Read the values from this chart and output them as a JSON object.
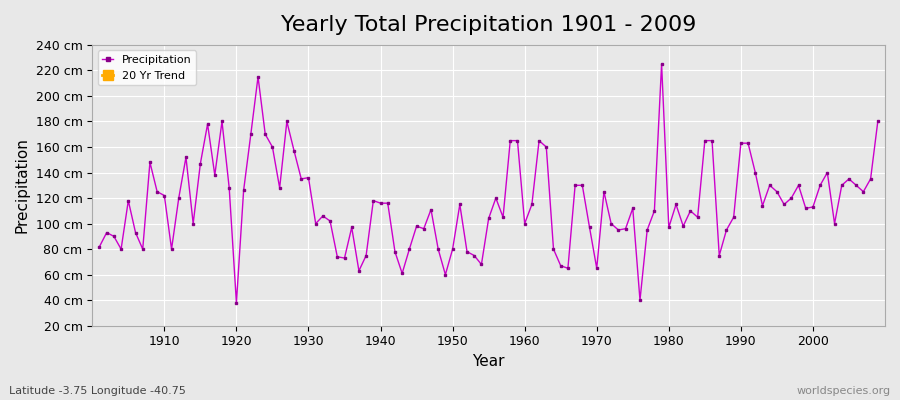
{
  "title": "Yearly Total Precipitation 1901 - 2009",
  "xlabel": "Year",
  "ylabel": "Precipitation",
  "subtitle": "Latitude -3.75 Longitude -40.75",
  "watermark": "worldspecies.org",
  "years": [
    1901,
    1902,
    1903,
    1904,
    1905,
    1906,
    1907,
    1908,
    1909,
    1910,
    1911,
    1912,
    1913,
    1914,
    1915,
    1916,
    1917,
    1918,
    1919,
    1920,
    1921,
    1922,
    1923,
    1924,
    1925,
    1926,
    1927,
    1928,
    1929,
    1930,
    1931,
    1932,
    1933,
    1934,
    1935,
    1936,
    1937,
    1938,
    1939,
    1940,
    1941,
    1942,
    1943,
    1944,
    1945,
    1946,
    1947,
    1948,
    1949,
    1950,
    1951,
    1952,
    1953,
    1954,
    1955,
    1956,
    1957,
    1958,
    1959,
    1960,
    1961,
    1962,
    1963,
    1964,
    1965,
    1966,
    1967,
    1968,
    1969,
    1970,
    1971,
    1972,
    1973,
    1974,
    1975,
    1976,
    1977,
    1978,
    1979,
    1980,
    1981,
    1982,
    1983,
    1984,
    1985,
    1986,
    1987,
    1988,
    1989,
    1990,
    1991,
    1992,
    1993,
    1994,
    1995,
    1996,
    1997,
    1998,
    1999,
    2000,
    2001,
    2002,
    2003,
    2004,
    2005,
    2006,
    2007,
    2008,
    2009
  ],
  "precipitation": [
    82,
    93,
    90,
    80,
    118,
    93,
    80,
    148,
    125,
    122,
    80,
    120,
    152,
    100,
    147,
    178,
    138,
    180,
    128,
    38,
    126,
    170,
    215,
    170,
    160,
    128,
    180,
    157,
    135,
    136,
    100,
    106,
    102,
    74,
    73,
    97,
    63,
    75,
    118,
    116,
    116,
    78,
    61,
    80,
    98,
    96,
    111,
    80,
    60,
    80,
    115,
    78,
    75,
    68,
    104,
    120,
    105,
    165,
    165,
    100,
    115,
    165,
    160,
    80,
    67,
    65,
    130,
    130,
    97,
    65,
    125,
    100,
    95,
    96,
    112,
    40,
    95,
    110,
    225,
    97,
    115,
    98,
    110,
    105,
    165,
    165,
    75,
    95,
    105,
    163,
    163,
    140,
    114,
    130,
    125,
    115,
    120,
    130,
    112,
    113,
    130,
    140,
    100,
    130,
    135,
    130,
    125,
    135,
    180
  ],
  "line_color": "#cc00cc",
  "marker_color": "#880088",
  "legend_trend_color": "#ffaa00",
  "bg_color": "#e8e8e8",
  "grid_color": "#ffffff",
  "ylim": [
    20,
    240
  ],
  "yticks": [
    20,
    40,
    60,
    80,
    100,
    120,
    140,
    160,
    180,
    200,
    220,
    240
  ],
  "xticks": [
    1910,
    1920,
    1930,
    1940,
    1950,
    1960,
    1970,
    1980,
    1990,
    2000
  ],
  "title_fontsize": 16,
  "axis_label_fontsize": 11
}
